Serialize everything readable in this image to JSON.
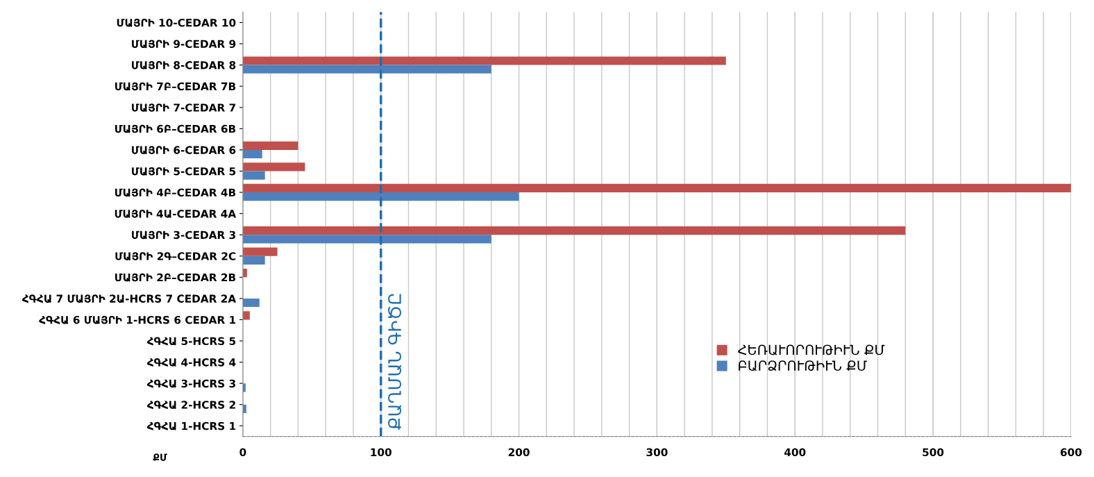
{
  "chart_data": {
    "type": "bar",
    "orientation": "horizontal",
    "categories": [
      "ՄԱՅՐԻ 10-CEDAR 10",
      "ՄԱՅՐԻ 9-CEDAR 9",
      "ՄԱՅՐԻ 8-CEDAR 8",
      "ՄԱՅՐԻ 7Բ–CEDAR 7B",
      "ՄԱՅՐԻ 7-CEDAR 7",
      "ՄԱՅՐԻ 6Բ–CEDAR 6B",
      "ՄԱՅՐԻ 6-CEDAR 6",
      "ՄԱՅՐԻ 5-CEDAR 5",
      "ՄԱՅՐԻ 4Բ–CEDAR 4B",
      "ՄԱՅՐԻ 4Ա-CEDAR 4A",
      "ՄԱՅՐԻ 3-CEDAR 3",
      "ՄԱՅՐԻ 2Գ–CEDAR 2C",
      "ՄԱՅՐԻ 2Բ–CEDAR 2B",
      "ՀԳՀԱ 7 ՄԱՅՐԻ 2Ա-HCRS 7 CEDAR 2A",
      "ՀԳՀԱ 6 ՄԱՅՐԻ 1-HCRS 6 CEDAR 1",
      "ՀԳՀԱ 5-HCRS 5",
      "ՀԳՀԱ 4-HCRS 4",
      "ՀԳՀԱ 3-HCRS 3",
      "ՀԳՀԱ 2-HCRS 2",
      "ՀԳՀԱ 1-HCRS 1"
    ],
    "series": [
      {
        "name": "ՀԵՌԱՒՈՐՈՒԹԻՒՆ ՔՄ",
        "color": "#c0504d",
        "values": [
          null,
          null,
          350,
          null,
          null,
          null,
          40,
          45,
          600,
          null,
          480,
          25,
          3,
          null,
          5,
          null,
          null,
          null,
          null,
          null
        ]
      },
      {
        "name": "ԲԱՐՁՐՈՒԹԻՒՆ ՔՄ",
        "color": "#4f81bd",
        "values": [
          null,
          null,
          180,
          null,
          null,
          null,
          14,
          16,
          200,
          null,
          180,
          16,
          null,
          12,
          null,
          null,
          null,
          2,
          2.5,
          null
        ]
      }
    ],
    "xlabel": "ՔՄ",
    "xlim": [
      0,
      600
    ],
    "xticks": [
      0,
      100,
      200,
      300,
      400,
      500,
      600
    ],
    "grid": "x",
    "legend": "bottom right",
    "ref_lines": [
      {
        "axis": "x",
        "value": 100,
        "label": "ՔԱՂՄԱՆ ԳԻԾԸ",
        "color": "#1f6fb0",
        "line_style": "dashed"
      }
    ]
  }
}
